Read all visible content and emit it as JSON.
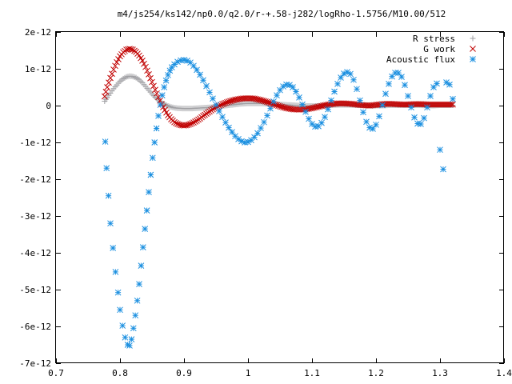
{
  "chart_data": {
    "type": "scatter",
    "title": "m4/js254/ks142/np0.0/q2.0/r-+.58-j282/logRho-1.5756/M10.00/512",
    "xlabel": "",
    "ylabel": "",
    "xlim": [
      0.7,
      1.4
    ],
    "ylim": [
      -7e-12,
      2e-12
    ],
    "grid": false,
    "legend_position": "top-right",
    "x_ticks": [
      {
        "value": 0.7,
        "label": "0.7"
      },
      {
        "value": 0.8,
        "label": "0.8"
      },
      {
        "value": 0.9,
        "label": "0.9"
      },
      {
        "value": 1.0,
        "label": "1"
      },
      {
        "value": 1.1,
        "label": "1.1"
      },
      {
        "value": 1.2,
        "label": "1.2"
      },
      {
        "value": 1.3,
        "label": "1.3"
      },
      {
        "value": 1.4,
        "label": "1.4"
      }
    ],
    "y_ticks": [
      {
        "value": 2e-12,
        "label": "2e-12"
      },
      {
        "value": 1e-12,
        "label": "1e-12"
      },
      {
        "value": 0,
        "label": "0"
      },
      {
        "value": -1e-12,
        "label": "-1e-12"
      },
      {
        "value": -2e-12,
        "label": "-2e-12"
      },
      {
        "value": -3e-12,
        "label": "-3e-12"
      },
      {
        "value": -4e-12,
        "label": "-4e-12"
      },
      {
        "value": -5e-12,
        "label": "-5e-12"
      },
      {
        "value": -6e-12,
        "label": "-6e-12"
      },
      {
        "value": -7e-12,
        "label": "-7e-12"
      }
    ],
    "series": [
      {
        "name": "R stress",
        "marker": "plus",
        "color": "#a0a0a4",
        "x": [
          0.776,
          0.78,
          0.785,
          0.79,
          0.795,
          0.8,
          0.805,
          0.81,
          0.815,
          0.82,
          0.825,
          0.83,
          0.835,
          0.84,
          0.845,
          0.85,
          0.855,
          0.86,
          0.865,
          0.87,
          0.875,
          0.88,
          0.885,
          0.89,
          0.9,
          0.91,
          0.92,
          0.93,
          0.94,
          0.95,
          0.96,
          0.97,
          0.98,
          0.99,
          1.0,
          1.01,
          1.02,
          1.03,
          1.04,
          1.05,
          1.06,
          1.07,
          1.08,
          1.09,
          1.1,
          1.11,
          1.12,
          1.13,
          1.14,
          1.15,
          1.16,
          1.17,
          1.18,
          1.19,
          1.2,
          1.21,
          1.22,
          1.23,
          1.24,
          1.25,
          1.26,
          1.27,
          1.28,
          1.29,
          1.3,
          1.31,
          1.32
        ],
        "y": [
          1.2e-13,
          2.2e-13,
          3.4e-13,
          4.6e-13,
          5.6e-13,
          6.6e-13,
          7.3e-13,
          7.8e-13,
          8e-13,
          7.9e-13,
          7.6e-13,
          7e-13,
          6.2e-13,
          5.2e-13,
          4.2e-13,
          3.2e-13,
          2.3e-13,
          1.5e-13,
          8e-14,
          3e-14,
          -1e-14,
          -4e-14,
          -6e-14,
          -7e-14,
          -8e-14,
          -8e-14,
          -7e-14,
          -6e-14,
          -5e-14,
          -3e-14,
          -1e-14,
          1e-14,
          3e-14,
          5e-14,
          6e-14,
          6e-14,
          6e-14,
          5e-14,
          4e-14,
          3e-14,
          2e-14,
          1e-14,
          0,
          -1e-14,
          -1e-14,
          -1e-14,
          0,
          1e-14,
          2e-14,
          2e-14,
          2e-14,
          1e-14,
          1e-14,
          0,
          0,
          0,
          1e-14,
          1e-14,
          1e-14,
          1e-14,
          1e-14,
          1e-14,
          0,
          0,
          1e-14,
          1e-14,
          1e-14
        ]
      },
      {
        "name": "G work",
        "marker": "cross",
        "color": "#c00000",
        "x": [
          0.776,
          0.78,
          0.785,
          0.79,
          0.795,
          0.8,
          0.805,
          0.81,
          0.815,
          0.82,
          0.825,
          0.83,
          0.835,
          0.84,
          0.845,
          0.85,
          0.855,
          0.86,
          0.865,
          0.87,
          0.875,
          0.88,
          0.885,
          0.89,
          0.895,
          0.9,
          0.905,
          0.91,
          0.915,
          0.92,
          0.925,
          0.93,
          0.935,
          0.94,
          0.945,
          0.95,
          0.96,
          0.97,
          0.98,
          0.99,
          1.0,
          1.01,
          1.02,
          1.03,
          1.04,
          1.05,
          1.06,
          1.07,
          1.08,
          1.09,
          1.1,
          1.11,
          1.12,
          1.13,
          1.14,
          1.15,
          1.16,
          1.17,
          1.18,
          1.19,
          1.2,
          1.21,
          1.22,
          1.23,
          1.24,
          1.25,
          1.26,
          1.27,
          1.28,
          1.29,
          1.3,
          1.31,
          1.32
        ],
        "y": [
          2.5e-13,
          5e-13,
          7.5e-13,
          9.8e-13,
          1.18e-12,
          1.34e-12,
          1.45e-12,
          1.52e-12,
          1.54e-12,
          1.52e-12,
          1.46e-12,
          1.36e-12,
          1.22e-12,
          1.05e-12,
          8.5e-13,
          6.4e-13,
          4.3e-13,
          2.3e-13,
          4e-14,
          -1.2e-13,
          -2.6e-13,
          -3.7e-13,
          -4.5e-13,
          -5e-13,
          -5.3e-13,
          -5.4e-13,
          -5.3e-13,
          -5e-13,
          -4.6e-13,
          -4.1e-13,
          -3.5e-13,
          -2.8e-13,
          -2.2e-13,
          -1.6e-13,
          -1e-13,
          -5e-14,
          4e-14,
          1.1e-13,
          1.6e-13,
          1.9e-13,
          2e-13,
          1.9e-13,
          1.5e-13,
          1e-13,
          4e-14,
          -2e-14,
          -7e-14,
          -1e-13,
          -1.1e-13,
          -1e-13,
          -7e-14,
          -3e-14,
          1e-14,
          4e-14,
          6e-14,
          6e-14,
          5e-14,
          3e-14,
          1e-14,
          0,
          2e-14,
          4e-14,
          5e-14,
          4e-14,
          3e-14,
          3e-14,
          4e-14,
          4e-14,
          3e-14,
          3e-14,
          3e-14,
          3e-14,
          3e-14
        ]
      },
      {
        "name": "Acoustic flux",
        "marker": "star",
        "color": "#1a8fe0",
        "x": [
          0.777,
          0.779,
          0.782,
          0.785,
          0.789,
          0.793,
          0.797,
          0.8,
          0.804,
          0.808,
          0.812,
          0.815,
          0.818,
          0.821,
          0.824,
          0.827,
          0.83,
          0.833,
          0.836,
          0.839,
          0.842,
          0.845,
          0.848,
          0.851,
          0.854,
          0.857,
          0.86,
          0.863,
          0.866,
          0.869,
          0.872,
          0.875,
          0.878,
          0.881,
          0.885,
          0.89,
          0.895,
          0.9,
          0.905,
          0.91,
          0.915,
          0.92,
          0.925,
          0.93,
          0.935,
          0.94,
          0.945,
          0.95,
          0.955,
          0.96,
          0.965,
          0.97,
          0.975,
          0.98,
          0.985,
          0.99,
          0.995,
          1.0,
          1.005,
          1.01,
          1.015,
          1.02,
          1.025,
          1.03,
          1.035,
          1.04,
          1.045,
          1.05,
          1.055,
          1.06,
          1.065,
          1.07,
          1.075,
          1.08,
          1.085,
          1.09,
          1.095,
          1.1,
          1.105,
          1.11,
          1.115,
          1.12,
          1.125,
          1.13,
          1.135,
          1.14,
          1.145,
          1.15,
          1.155,
          1.16,
          1.165,
          1.17,
          1.175,
          1.18,
          1.185,
          1.19,
          1.195,
          1.2,
          1.205,
          1.21,
          1.215,
          1.22,
          1.225,
          1.23,
          1.235,
          1.24,
          1.245,
          1.25,
          1.255,
          1.26,
          1.265,
          1.27,
          1.275,
          1.28,
          1.285,
          1.29,
          1.295,
          1.3,
          1.305,
          1.31,
          1.315,
          1.32
        ],
        "y": [
          -9.8e-13,
          -1.7e-12,
          -2.45e-12,
          -3.2e-12,
          -3.87e-12,
          -4.52e-12,
          -5.08e-12,
          -5.55e-12,
          -5.98e-12,
          -6.3e-12,
          -6.5e-12,
          -6.52e-12,
          -6.35e-12,
          -6.05e-12,
          -5.7e-12,
          -5.3e-12,
          -4.85e-12,
          -4.35e-12,
          -3.85e-12,
          -3.35e-12,
          -2.85e-12,
          -2.35e-12,
          -1.88e-12,
          -1.42e-12,
          -1e-12,
          -6.2e-13,
          -2.8e-13,
          2e-14,
          2.8e-13,
          5e-13,
          6.8e-13,
          8.3e-13,
          9.5e-13,
          1.04e-12,
          1.12e-12,
          1.19e-12,
          1.23e-12,
          1.24e-12,
          1.22e-12,
          1.17e-12,
          1.08e-12,
          9.7e-13,
          8.4e-13,
          6.9e-13,
          5.3e-13,
          3.6e-13,
          1.9e-13,
          2e-14,
          -1.5e-13,
          -3.1e-13,
          -4.6e-13,
          -6e-13,
          -7.2e-13,
          -8.3e-13,
          -9.1e-13,
          -9.7e-13,
          -1e-12,
          -9.9e-13,
          -9.4e-13,
          -8.6e-13,
          -7.5e-13,
          -6.1e-13,
          -4.5e-13,
          -2.7e-13,
          -8e-14,
          1.1e-13,
          2.8e-13,
          4.2e-13,
          5.2e-13,
          5.7e-13,
          5.6e-13,
          5e-13,
          3.8e-13,
          2.2e-13,
          3e-14,
          -1.7e-13,
          -3.6e-13,
          -5e-13,
          -5.7e-13,
          -5.6e-13,
          -4.7e-13,
          -3.1e-13,
          -1e-13,
          1.4e-13,
          3.8e-13,
          5.9e-13,
          7.6e-13,
          8.7e-13,
          9.1e-13,
          8.6e-13,
          7e-13,
          4.5e-13,
          1.4e-13,
          -1.8e-13,
          -4.4e-13,
          -6e-13,
          -6.3e-13,
          -5.2e-13,
          -2.9e-13,
          1e-14,
          3.2e-13,
          5.9e-13,
          7.9e-13,
          8.9e-13,
          8.9e-13,
          7.8e-13,
          5.6e-13,
          2.6e-13,
          -5e-14,
          -3.2e-13,
          -4.9e-13,
          -5e-13,
          -3.4e-13,
          -5e-14,
          2.6e-13,
          5e-13,
          6e-13,
          -1.2e-12,
          -1.73e-12,
          6.3e-13,
          5.7e-13,
          1.8e-13
        ]
      }
    ]
  }
}
